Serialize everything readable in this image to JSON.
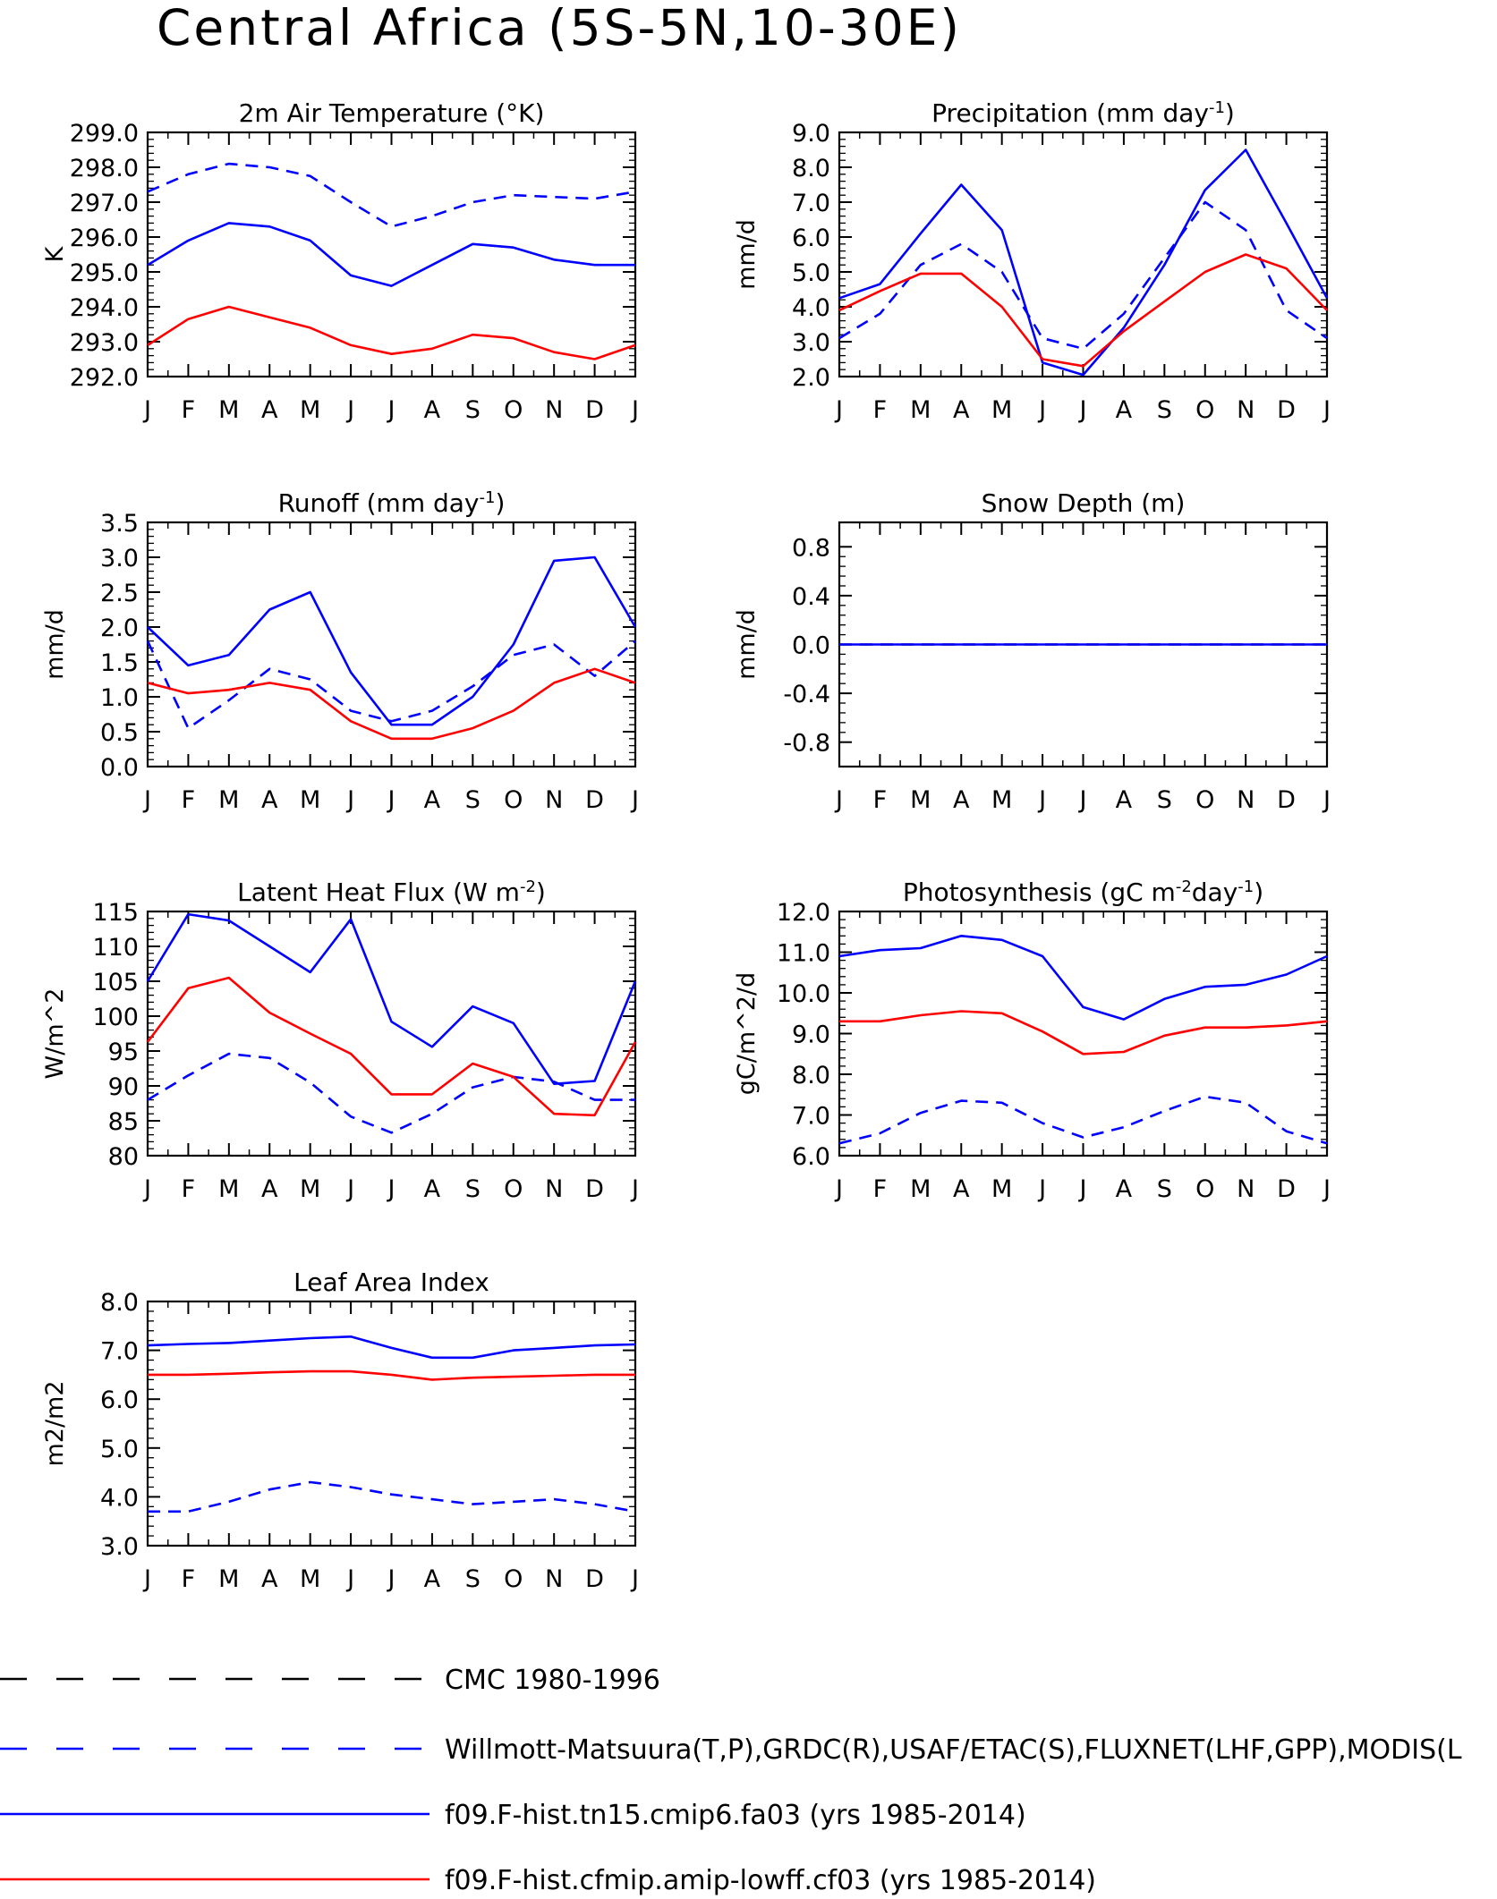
{
  "title": "Central Africa (5S-5N,10-30E)",
  "months": [
    "J",
    "F",
    "M",
    "A",
    "M",
    "J",
    "J",
    "A",
    "S",
    "O",
    "N",
    "D",
    "J"
  ],
  "colors": {
    "cmc": "#000000",
    "obs": "#0000ff",
    "model_fa03": "#0000ff",
    "model_cf03": "#ff0000"
  },
  "legend": [
    {
      "label": "CMC 1980-1996",
      "color": "#000000",
      "dash": true
    },
    {
      "label": "Willmott-Matsuura(T,P),GRDC(R),USAF/ETAC(S),FLUXNET(LHF,GPP),MODIS(L",
      "color": "#0000ff",
      "dash": true
    },
    {
      "label": "f09.F-hist.tn15.cmip6.fa03 (yrs 1985-2014)",
      "color": "#0000ff",
      "dash": false
    },
    {
      "label": "f09.F-hist.cfmip.amip-lowff.cf03 (yrs 1985-2014)",
      "color": "#ff0000",
      "dash": false
    }
  ],
  "chart_data": [
    {
      "type": "line",
      "title": "2m Air Temperature (°K)",
      "ylabel": "K",
      "ylim": [
        292.0,
        299.0
      ],
      "yticks": [
        "292.0",
        "293.0",
        "294.0",
        "295.0",
        "296.0",
        "297.0",
        "298.0",
        "299.0"
      ],
      "categories": [
        "J",
        "F",
        "M",
        "A",
        "M",
        "J",
        "J",
        "A",
        "S",
        "O",
        "N",
        "D",
        "J"
      ],
      "series": [
        {
          "key": "obs",
          "color": "#0000ff",
          "dashed": true,
          "values": [
            297.3,
            297.8,
            298.1,
            298.0,
            297.75,
            297.0,
            296.3,
            296.6,
            297.0,
            297.2,
            297.15,
            297.1,
            297.3
          ]
        },
        {
          "key": "fa03",
          "color": "#0000ff",
          "dashed": false,
          "values": [
            295.2,
            295.9,
            296.4,
            296.3,
            295.9,
            294.9,
            294.6,
            295.2,
            295.8,
            295.7,
            295.35,
            295.2,
            295.2
          ]
        },
        {
          "key": "cf03",
          "color": "#ff0000",
          "dashed": false,
          "values": [
            292.9,
            293.65,
            294.0,
            293.7,
            293.4,
            292.9,
            292.65,
            292.8,
            293.2,
            293.1,
            292.7,
            292.5,
            292.9
          ]
        }
      ]
    },
    {
      "type": "line",
      "title": "Precipitation (mm day",
      "title_sup": "-1",
      "title_end": ")",
      "ylabel": "mm/d",
      "ylim": [
        2.0,
        9.0
      ],
      "yticks": [
        "2.0",
        "3.0",
        "4.0",
        "5.0",
        "6.0",
        "7.0",
        "8.0",
        "9.0"
      ],
      "categories": [
        "J",
        "F",
        "M",
        "A",
        "M",
        "J",
        "J",
        "A",
        "S",
        "O",
        "N",
        "D",
        "J"
      ],
      "series": [
        {
          "key": "obs",
          "color": "#0000ff",
          "dashed": true,
          "values": [
            3.1,
            3.8,
            5.2,
            5.8,
            5.0,
            3.1,
            2.8,
            3.8,
            5.4,
            7.0,
            6.2,
            3.9,
            3.1
          ]
        },
        {
          "key": "fa03",
          "color": "#0000ff",
          "dashed": false,
          "values": [
            4.25,
            4.65,
            6.1,
            7.5,
            6.2,
            2.4,
            2.05,
            3.4,
            5.2,
            7.35,
            8.5,
            6.4,
            4.25
          ]
        },
        {
          "key": "cf03",
          "color": "#ff0000",
          "dashed": false,
          "values": [
            3.9,
            4.45,
            4.95,
            4.95,
            4.0,
            2.5,
            2.3,
            3.3,
            4.15,
            5.0,
            5.5,
            5.1,
            3.9
          ]
        }
      ]
    },
    {
      "type": "line",
      "title": "Runoff (mm day",
      "title_sup": "-1",
      "title_end": ")",
      "ylabel": "mm/d",
      "ylim": [
        0.0,
        3.5
      ],
      "yticks": [
        "0.0",
        "0.5",
        "1.0",
        "1.5",
        "2.0",
        "2.5",
        "3.0",
        "3.5"
      ],
      "categories": [
        "J",
        "F",
        "M",
        "A",
        "M",
        "J",
        "J",
        "A",
        "S",
        "O",
        "N",
        "D",
        "J"
      ],
      "series": [
        {
          "key": "obs",
          "color": "#0000ff",
          "dashed": true,
          "values": [
            1.8,
            0.55,
            0.95,
            1.4,
            1.25,
            0.8,
            0.65,
            0.8,
            1.15,
            1.6,
            1.75,
            1.3,
            1.8
          ]
        },
        {
          "key": "fa03",
          "color": "#0000ff",
          "dashed": false,
          "values": [
            2.0,
            1.45,
            1.6,
            2.25,
            2.5,
            1.35,
            0.6,
            0.6,
            1.0,
            1.75,
            2.95,
            3.0,
            2.0
          ]
        },
        {
          "key": "cf03",
          "color": "#ff0000",
          "dashed": false,
          "values": [
            1.2,
            1.05,
            1.1,
            1.2,
            1.1,
            0.65,
            0.4,
            0.4,
            0.55,
            0.8,
            1.2,
            1.4,
            1.2
          ]
        }
      ]
    },
    {
      "type": "line",
      "title": "Snow Depth (m)",
      "ylabel": "mm/d",
      "ylim": [
        -1.0,
        1.0
      ],
      "yticks": [
        "-0.8",
        "-0.4",
        "0.0",
        "0.4",
        "0.8"
      ],
      "ytick_values": [
        -0.8,
        -0.4,
        0.0,
        0.4,
        0.8
      ],
      "categories": [
        "J",
        "F",
        "M",
        "A",
        "M",
        "J",
        "J",
        "A",
        "S",
        "O",
        "N",
        "D",
        "J"
      ],
      "series": [
        {
          "key": "cmc",
          "color": "#000000",
          "dashed": true,
          "values": [
            0,
            0,
            0,
            0,
            0,
            0,
            0,
            0,
            0,
            0,
            0,
            0,
            0
          ]
        },
        {
          "key": "fa03",
          "color": "#0000ff",
          "dashed": false,
          "values": [
            0,
            0,
            0,
            0,
            0,
            0,
            0,
            0,
            0,
            0,
            0,
            0,
            0
          ]
        }
      ]
    },
    {
      "type": "line",
      "title": "Latent Heat Flux (W m",
      "title_sup": "-2",
      "title_end": ")",
      "ylabel": "W/m^2",
      "ylim": [
        80,
        115
      ],
      "yticks": [
        "80",
        "85",
        "90",
        "95",
        "100",
        "105",
        "110",
        "115"
      ],
      "categories": [
        "J",
        "F",
        "M",
        "A",
        "M",
        "J",
        "J",
        "A",
        "S",
        "O",
        "N",
        "D",
        "J"
      ],
      "series": [
        {
          "key": "obs",
          "color": "#0000ff",
          "dashed": true,
          "values": [
            88.0,
            91.5,
            94.6,
            94.0,
            90.5,
            85.6,
            83.3,
            86.0,
            89.8,
            91.3,
            90.6,
            88.0,
            88.0
          ]
        },
        {
          "key": "fa03",
          "color": "#0000ff",
          "dashed": false,
          "values": [
            105.0,
            114.6,
            113.7,
            110.0,
            106.3,
            113.9,
            99.2,
            95.6,
            101.4,
            99.0,
            90.3,
            90.7,
            105.0
          ]
        },
        {
          "key": "cf03",
          "color": "#ff0000",
          "dashed": false,
          "values": [
            96.3,
            104.0,
            105.5,
            100.5,
            97.5,
            94.6,
            88.8,
            88.8,
            93.2,
            91.3,
            86.0,
            85.8,
            96.3
          ]
        }
      ]
    },
    {
      "type": "line",
      "title": "Photosynthesis (gC m",
      "title_sup": "-2",
      "title_mid": "day",
      "title_sup2": "-1",
      "title_end": ")",
      "ylabel": "gC/m^2/d",
      "ylim": [
        6.0,
        12.0
      ],
      "yticks": [
        "6.0",
        "7.0",
        "8.0",
        "9.0",
        "10.0",
        "11.0",
        "12.0"
      ],
      "categories": [
        "J",
        "F",
        "M",
        "A",
        "M",
        "J",
        "J",
        "A",
        "S",
        "O",
        "N",
        "D",
        "J"
      ],
      "series": [
        {
          "key": "obs",
          "color": "#0000ff",
          "dashed": true,
          "values": [
            6.3,
            6.55,
            7.05,
            7.35,
            7.3,
            6.8,
            6.45,
            6.7,
            7.1,
            7.45,
            7.3,
            6.6,
            6.3
          ]
        },
        {
          "key": "fa03",
          "color": "#0000ff",
          "dashed": false,
          "values": [
            10.9,
            11.05,
            11.1,
            11.4,
            11.3,
            10.9,
            9.65,
            9.35,
            9.85,
            10.15,
            10.2,
            10.45,
            10.9
          ]
        },
        {
          "key": "cf03",
          "color": "#ff0000",
          "dashed": false,
          "values": [
            9.3,
            9.3,
            9.45,
            9.55,
            9.5,
            9.05,
            8.5,
            8.55,
            8.95,
            9.15,
            9.15,
            9.2,
            9.3
          ]
        }
      ]
    },
    {
      "type": "line",
      "title": "Leaf Area Index",
      "ylabel": "m2/m2",
      "ylim": [
        3.0,
        8.0
      ],
      "yticks": [
        "3.0",
        "4.0",
        "5.0",
        "6.0",
        "7.0",
        "8.0"
      ],
      "categories": [
        "J",
        "F",
        "M",
        "A",
        "M",
        "J",
        "J",
        "A",
        "S",
        "O",
        "N",
        "D",
        "J"
      ],
      "series": [
        {
          "key": "obs",
          "color": "#0000ff",
          "dashed": true,
          "values": [
            3.7,
            3.7,
            3.9,
            4.15,
            4.3,
            4.2,
            4.05,
            3.95,
            3.85,
            3.9,
            3.95,
            3.85,
            3.7
          ]
        },
        {
          "key": "fa03",
          "color": "#0000ff",
          "dashed": false,
          "values": [
            7.1,
            7.13,
            7.15,
            7.2,
            7.25,
            7.28,
            7.05,
            6.85,
            6.85,
            7.0,
            7.05,
            7.1,
            7.12
          ]
        },
        {
          "key": "cf03",
          "color": "#ff0000",
          "dashed": false,
          "values": [
            6.5,
            6.5,
            6.52,
            6.55,
            6.57,
            6.57,
            6.5,
            6.4,
            6.44,
            6.46,
            6.48,
            6.5,
            6.5
          ]
        }
      ]
    }
  ]
}
